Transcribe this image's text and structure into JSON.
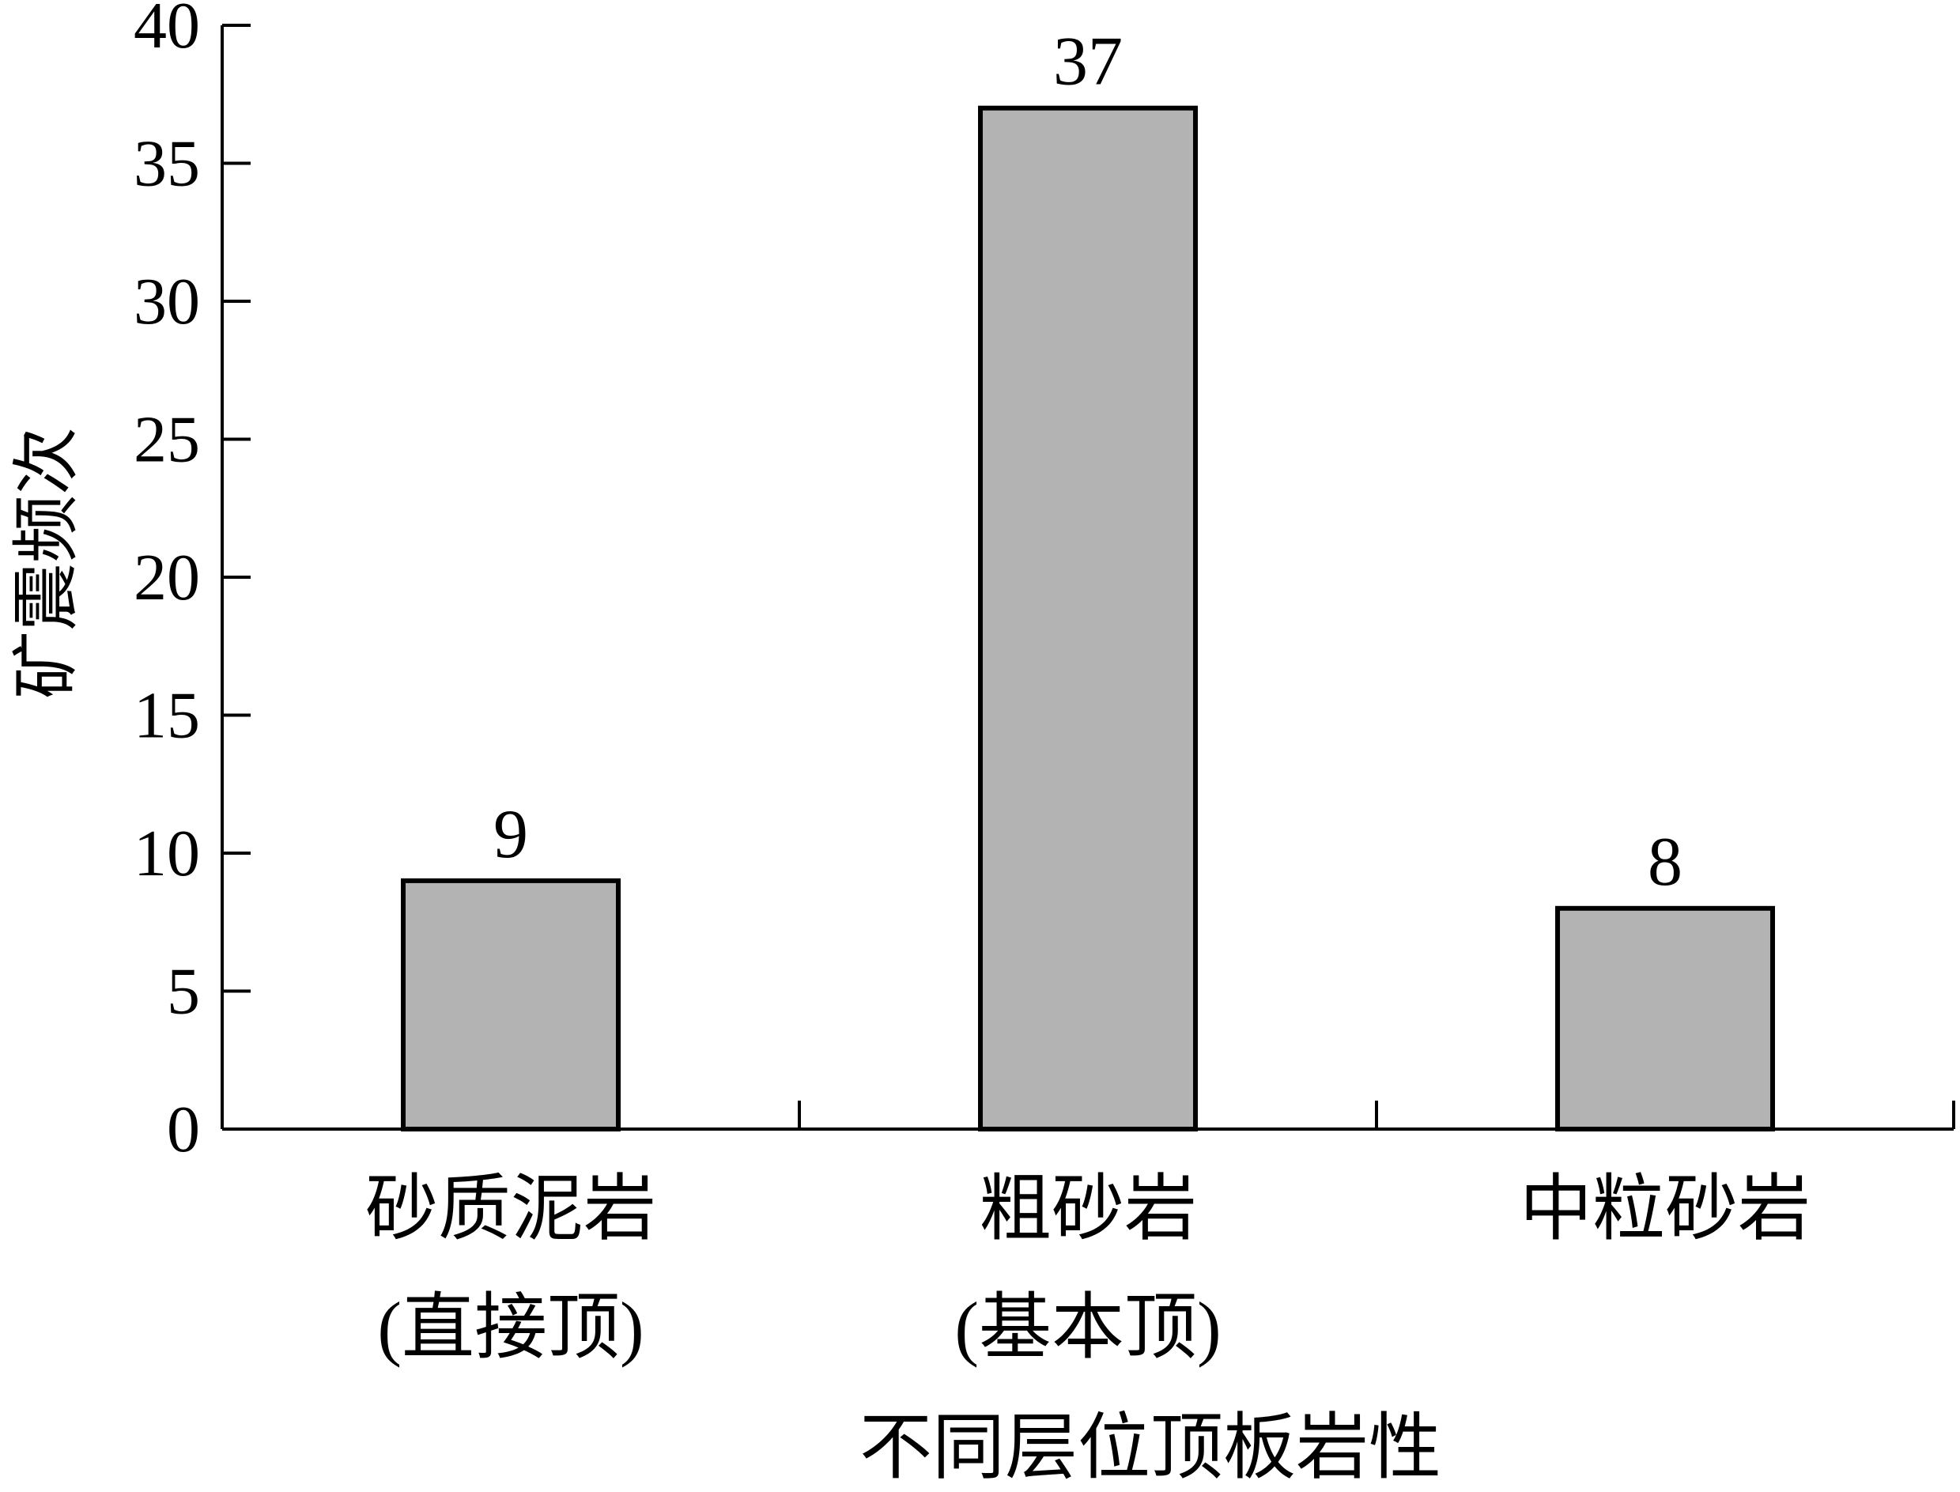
{
  "chart_data": {
    "type": "bar",
    "categories": [
      {
        "line1": "砂质泥岩",
        "line2": "(直接顶)"
      },
      {
        "line1": "粗砂岩",
        "line2": "(基本顶)"
      },
      {
        "line1": "中粒砂岩",
        "line2": ""
      }
    ],
    "values": [
      9,
      37,
      8
    ],
    "data_labels": [
      "9",
      "37",
      "8"
    ],
    "xlabel": "不同层位顶板岩性",
    "ylabel": "矿震频次",
    "ylim": [
      0,
      40
    ],
    "yticks": [
      0,
      5,
      10,
      15,
      20,
      25,
      30,
      35,
      40
    ],
    "grid": false,
    "bar_color": "#b3b3b3",
    "edge_color": "#000000"
  }
}
